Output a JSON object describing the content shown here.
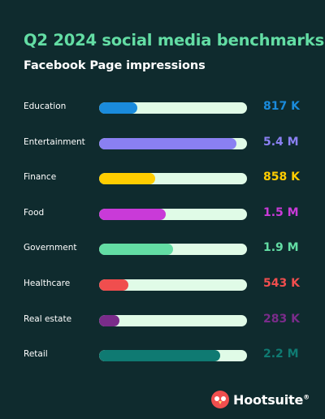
{
  "chart_data": {
    "type": "bar",
    "orientation": "horizontal",
    "title": "Q2 2024 social media benchmarks",
    "subtitle": "Facebook Page impressions",
    "categories": [
      "Education",
      "Entertainment",
      "Finance",
      "Food",
      "Government",
      "Healthcare",
      "Real estate",
      "Retail"
    ],
    "values": [
      817000,
      5400000,
      858000,
      1500000,
      1900000,
      543000,
      283000,
      2200000
    ],
    "value_labels": [
      "817 K",
      "5.4 M",
      "858 K",
      "1.5 M",
      "1.9 M",
      "543 K",
      "283 K",
      "2.2 M"
    ],
    "fill_fraction": [
      0.26,
      0.93,
      0.38,
      0.45,
      0.5,
      0.2,
      0.14,
      0.82
    ],
    "colors": [
      "#1a8bdc",
      "#8a80f2",
      "#ffcd00",
      "#c93ad8",
      "#63dda4",
      "#f04e4e",
      "#7a2c8a",
      "#0f7a72"
    ],
    "value_colors": [
      "#1a8bdc",
      "#8a80f2",
      "#ffcd00",
      "#c93ad8",
      "#63dda4",
      "#f04e4e",
      "#7a2c8a",
      "#0f7a72"
    ],
    "track_color": "#e0fbe7",
    "background": "#0f2b2e",
    "title_color": "#63dda4",
    "legend": "none",
    "grid": false
  },
  "brand": {
    "name": "Hootsuite",
    "mark": "®",
    "icon": "owl-logo-icon",
    "color": "#f04e4e"
  }
}
